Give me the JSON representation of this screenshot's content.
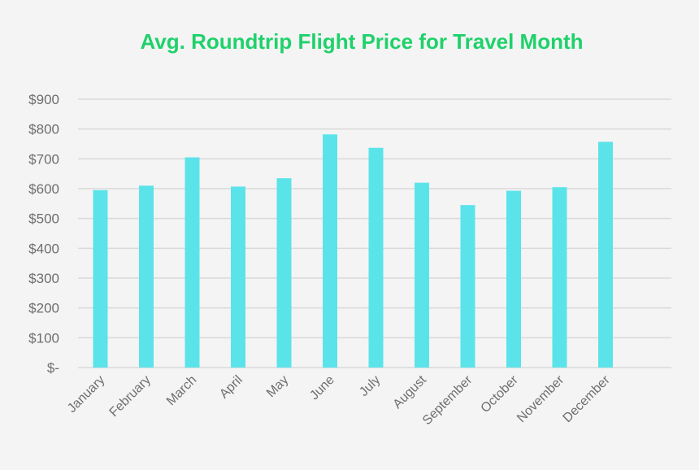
{
  "colors": {
    "background": "#f4f4f4",
    "title": "#1fd16b",
    "bar": "#5be3ea",
    "grid": "#d9d9d9",
    "axis_text": "#6e6e6e"
  },
  "chart_data": {
    "type": "bar",
    "title": "Avg. Roundtrip Flight Price for Travel Month",
    "xlabel": "",
    "ylabel": "",
    "categories": [
      "January",
      "February",
      "March",
      "April",
      "May",
      "June",
      "July",
      "August",
      "September",
      "October",
      "November",
      "December"
    ],
    "values": [
      595,
      610,
      705,
      607,
      635,
      782,
      737,
      620,
      545,
      593,
      605,
      757
    ],
    "ylim": [
      0,
      900
    ],
    "yticks": [
      0,
      100,
      200,
      300,
      400,
      500,
      600,
      700,
      800,
      900
    ],
    "ytick_labels": [
      "$-",
      "$100",
      "$200",
      "$300",
      "$400",
      "$500",
      "$600",
      "$700",
      "$800",
      "$900"
    ],
    "grid": true,
    "legend": "none"
  }
}
